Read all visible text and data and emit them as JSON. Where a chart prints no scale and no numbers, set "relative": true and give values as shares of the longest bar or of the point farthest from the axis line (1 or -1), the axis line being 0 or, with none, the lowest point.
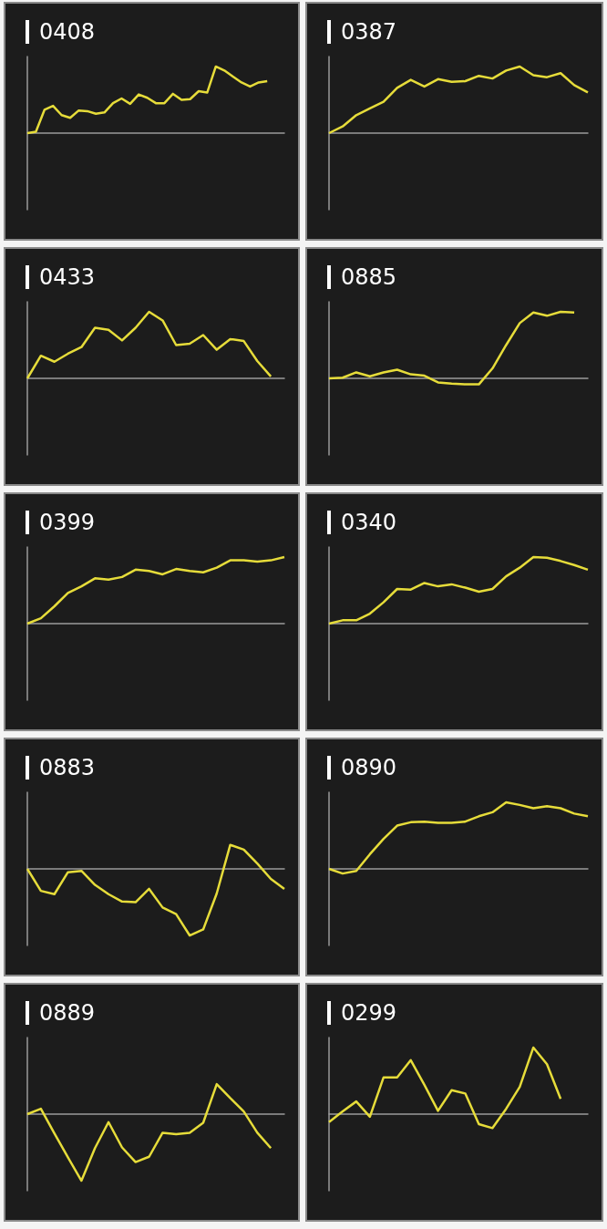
{
  "chart_data": [
    {
      "type": "line",
      "title": "0408",
      "relative": true,
      "marker": "none",
      "color": "#e6dc3a",
      "categories": [
        null,
        null,
        null,
        null,
        null,
        null,
        null,
        null,
        null,
        null,
        null,
        null,
        null,
        null,
        null,
        null,
        null,
        null,
        null,
        null,
        null,
        null,
        null,
        null,
        null,
        null,
        null,
        null,
        null,
        null,
        null
      ],
      "values": [
        0,
        0.02,
        0.35,
        0.41,
        0.27,
        0.23,
        0.34,
        0.33,
        0.29,
        0.31,
        0.45,
        0.52,
        0.44,
        0.58,
        0.53,
        0.45,
        0.45,
        0.59,
        0.5,
        0.51,
        0.63,
        0.61,
        1,
        0.94,
        0.85,
        0.76,
        0.7,
        0.76,
        0.78,
        null,
        null
      ]
    },
    {
      "type": "line",
      "title": "0387",
      "relative": true,
      "marker": "none",
      "color": "#e6dc3a",
      "categories": [
        null,
        null,
        null,
        null,
        null,
        null,
        null,
        null,
        null,
        null,
        null,
        null,
        null,
        null,
        null,
        null,
        null,
        null,
        null,
        null
      ],
      "values": [
        0,
        0.1,
        0.27,
        0.37,
        0.47,
        0.68,
        0.8,
        0.7,
        0.81,
        0.77,
        0.78,
        0.86,
        0.82,
        0.94,
        1,
        0.87,
        0.84,
        0.9,
        0.72,
        0.61
      ]
    },
    {
      "type": "line",
      "title": "0433",
      "relative": true,
      "marker": "none",
      "color": "#e6dc3a",
      "categories": [
        null,
        null,
        null,
        null,
        null,
        null,
        null,
        null,
        null,
        null,
        null,
        null,
        null,
        null,
        null,
        null,
        null,
        null,
        null,
        null
      ],
      "values": [
        0,
        0.34,
        0.25,
        0.37,
        0.47,
        0.76,
        0.73,
        0.57,
        0.76,
        1,
        0.87,
        0.5,
        0.52,
        0.65,
        0.43,
        0.59,
        0.56,
        0.26,
        0.03,
        null
      ]
    },
    {
      "type": "line",
      "title": "0885",
      "relative": true,
      "marker": "none",
      "color": "#e6dc3a",
      "categories": [
        null,
        null,
        null,
        null,
        null,
        null,
        null,
        null,
        null,
        null,
        null,
        null,
        null,
        null,
        null,
        null,
        null,
        null,
        null,
        null
      ],
      "values": [
        0,
        0.01,
        0.09,
        0.03,
        0.09,
        0.13,
        0.06,
        0.04,
        -0.06,
        -0.08,
        -0.09,
        -0.09,
        0.15,
        0.5,
        0.83,
        0.99,
        0.94,
        1,
        0.99,
        null
      ]
    },
    {
      "type": "line",
      "title": "0399",
      "relative": true,
      "marker": "none",
      "color": "#e6dc3a",
      "categories": [
        null,
        null,
        null,
        null,
        null,
        null,
        null,
        null,
        null,
        null,
        null,
        null,
        null,
        null,
        null,
        null,
        null,
        null,
        null,
        null
      ],
      "values": [
        0,
        0.08,
        0.26,
        0.46,
        0.56,
        0.68,
        0.66,
        0.7,
        0.81,
        0.79,
        0.74,
        0.82,
        0.79,
        0.77,
        0.84,
        0.95,
        0.95,
        0.93,
        0.95,
        1
      ]
    },
    {
      "type": "line",
      "title": "0340",
      "relative": true,
      "marker": "none",
      "color": "#e6dc3a",
      "categories": [
        null,
        null,
        null,
        null,
        null,
        null,
        null,
        null,
        null,
        null,
        null,
        null,
        null,
        null,
        null,
        null,
        null,
        null,
        null,
        null
      ],
      "values": [
        0,
        0.05,
        0.05,
        0.15,
        0.32,
        0.52,
        0.51,
        0.61,
        0.56,
        0.59,
        0.54,
        0.48,
        0.52,
        0.71,
        0.84,
        1,
        0.99,
        0.94,
        0.88,
        0.81
      ]
    },
    {
      "type": "line",
      "title": "0883",
      "relative": true,
      "marker": "none",
      "color": "#e6dc3a",
      "categories": [
        null,
        null,
        null,
        null,
        null,
        null,
        null,
        null,
        null,
        null,
        null,
        null,
        null,
        null,
        null,
        null,
        null,
        null,
        null,
        null
      ],
      "values": [
        0,
        -0.33,
        -0.38,
        -0.05,
        -0.03,
        -0.24,
        -0.38,
        -0.49,
        -0.5,
        -0.3,
        -0.58,
        -0.68,
        -1,
        -0.91,
        -0.37,
        0.36,
        0.29,
        0.08,
        -0.15,
        -0.3
      ]
    },
    {
      "type": "line",
      "title": "0890",
      "relative": true,
      "marker": "none",
      "color": "#e6dc3a",
      "categories": [
        null,
        null,
        null,
        null,
        null,
        null,
        null,
        null,
        null,
        null,
        null,
        null,
        null,
        null,
        null,
        null,
        null,
        null,
        null,
        null
      ],
      "values": [
        0,
        -0.07,
        -0.03,
        0.22,
        0.45,
        0.65,
        0.7,
        0.71,
        0.69,
        0.69,
        0.71,
        0.79,
        0.85,
        1,
        0.96,
        0.91,
        0.94,
        0.91,
        0.83,
        0.79
      ]
    },
    {
      "type": "line",
      "title": "0889",
      "relative": true,
      "marker": "none",
      "color": "#e6dc3a",
      "categories": [
        null,
        null,
        null,
        null,
        null,
        null,
        null,
        null,
        null,
        null,
        null,
        null,
        null,
        null,
        null,
        null,
        null,
        null,
        null,
        null
      ],
      "values": [
        0,
        0.08,
        -0.29,
        -0.65,
        -1,
        -0.51,
        -0.12,
        -0.5,
        -0.72,
        -0.64,
        -0.28,
        -0.3,
        -0.28,
        -0.13,
        0.45,
        0.24,
        0.04,
        -0.28,
        -0.51,
        null
      ]
    },
    {
      "type": "line",
      "title": "0299",
      "relative": true,
      "marker": "none",
      "color": "#e6dc3a",
      "categories": [
        null,
        null,
        null,
        null,
        null,
        null,
        null,
        null,
        null,
        null,
        null,
        null,
        null,
        null,
        null,
        null,
        null,
        null,
        null,
        null
      ],
      "values": [
        -0.12,
        0.04,
        0.19,
        -0.04,
        0.55,
        0.55,
        0.81,
        0.44,
        0.05,
        0.36,
        0.31,
        -0.15,
        -0.21,
        0.08,
        0.41,
        1,
        0.75,
        0.23,
        null,
        null
      ]
    }
  ]
}
